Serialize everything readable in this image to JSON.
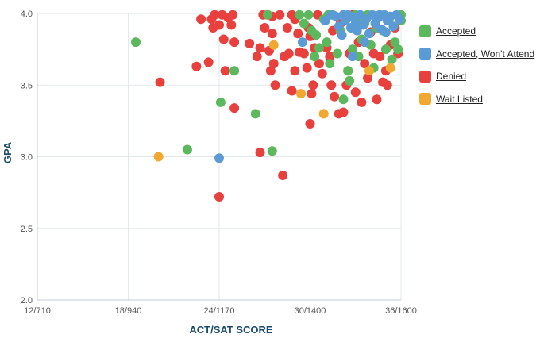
{
  "chart_data": {
    "type": "scatter",
    "xlabel": "ACT/SAT SCORE",
    "ylabel": "GPA",
    "x_axis": {
      "range": [
        12,
        36
      ],
      "ticks": [
        {
          "value": 12,
          "label": "12/710"
        },
        {
          "value": 18,
          "label": "18/940"
        },
        {
          "value": 24,
          "label": "24/1170"
        },
        {
          "value": 30,
          "label": "30/1400"
        },
        {
          "value": 36,
          "label": "36/1600"
        }
      ]
    },
    "y_axis": {
      "range": [
        2.0,
        4.0
      ],
      "ticks": [
        {
          "value": 2.0,
          "label": "2.0"
        },
        {
          "value": 2.5,
          "label": "2.5"
        },
        {
          "value": 3.0,
          "label": "3.0"
        },
        {
          "value": 3.5,
          "label": "3.5"
        },
        {
          "value": 4.0,
          "label": "4.0"
        }
      ]
    },
    "grid": true,
    "legend_position": "right",
    "series": [
      {
        "name": "Denied",
        "color": "#e8403c",
        "points": [
          [
            20.1,
            3.52
          ],
          [
            22.5,
            3.63
          ],
          [
            22.8,
            3.96
          ],
          [
            23.3,
            3.66
          ],
          [
            23.5,
            3.96
          ],
          [
            23.7,
            3.99
          ],
          [
            23.6,
            3.9
          ],
          [
            24.0,
            3.92
          ],
          [
            24.2,
            3.99
          ],
          [
            24.3,
            3.82
          ],
          [
            24.4,
            3.6
          ],
          [
            24.6,
            3.97
          ],
          [
            24.8,
            3.92
          ],
          [
            24.9,
            3.99
          ],
          [
            25.0,
            3.8
          ],
          [
            25.0,
            3.34
          ],
          [
            24.0,
            2.72
          ],
          [
            26.0,
            3.79
          ],
          [
            26.5,
            3.7
          ],
          [
            26.7,
            3.76
          ],
          [
            26.9,
            3.99
          ],
          [
            27.0,
            3.9
          ],
          [
            27.2,
            3.99
          ],
          [
            27.4,
            3.6
          ],
          [
            27.3,
            3.74
          ],
          [
            27.5,
            3.98
          ],
          [
            27.5,
            3.86
          ],
          [
            27.6,
            3.65
          ],
          [
            27.7,
            3.5
          ],
          [
            26.7,
            3.03
          ],
          [
            28.3,
            3.7
          ],
          [
            28.0,
            3.99
          ],
          [
            28.6,
            3.72
          ],
          [
            28.8,
            3.99
          ],
          [
            29.0,
            3.96
          ],
          [
            29.2,
            3.86
          ],
          [
            29.3,
            3.73
          ],
          [
            29.0,
            3.6
          ],
          [
            28.8,
            3.46
          ],
          [
            28.2,
            2.87
          ],
          [
            29.6,
            3.72
          ],
          [
            29.8,
            3.62
          ],
          [
            29.9,
            3.9
          ],
          [
            30.1,
            3.44
          ],
          [
            30.2,
            3.5
          ],
          [
            30.3,
            3.76
          ],
          [
            30.5,
            3.99
          ],
          [
            30.0,
            3.23
          ],
          [
            30.6,
            3.65
          ],
          [
            30.8,
            3.58
          ],
          [
            31.0,
            3.96
          ],
          [
            31.1,
            3.76
          ],
          [
            31.3,
            3.7
          ],
          [
            31.4,
            3.5
          ],
          [
            31.6,
            3.42
          ],
          [
            31.5,
            3.88
          ],
          [
            31.9,
            3.3
          ],
          [
            32.2,
            3.31
          ],
          [
            32.4,
            3.5
          ],
          [
            32.5,
            3.6
          ],
          [
            32.6,
            3.72
          ],
          [
            32.8,
            3.99
          ],
          [
            33.0,
            3.45
          ],
          [
            33.2,
            3.8
          ],
          [
            33.4,
            3.38
          ],
          [
            33.6,
            3.65
          ],
          [
            33.8,
            3.55
          ],
          [
            34.0,
            3.87
          ],
          [
            34.2,
            3.72
          ],
          [
            34.4,
            3.4
          ],
          [
            34.6,
            3.7
          ],
          [
            34.8,
            3.52
          ],
          [
            35.0,
            3.6
          ],
          [
            35.1,
            3.5
          ],
          [
            35.3,
            3.78
          ],
          [
            35.6,
            3.9
          ],
          [
            35.8,
            3.72
          ],
          [
            30.0,
            3.84
          ],
          [
            32.0,
            3.93
          ],
          [
            28.5,
            3.9
          ]
        ]
      },
      {
        "name": "Accepted",
        "color": "#5cb85c",
        "points": [
          [
            18.5,
            3.8
          ],
          [
            21.9,
            3.05
          ],
          [
            24.1,
            3.38
          ],
          [
            25.0,
            3.6
          ],
          [
            26.4,
            3.3
          ],
          [
            27.5,
            3.04
          ],
          [
            27.2,
            3.99
          ],
          [
            29.3,
            3.99
          ],
          [
            29.6,
            3.93
          ],
          [
            29.9,
            3.99
          ],
          [
            30.1,
            3.88
          ],
          [
            30.3,
            3.7
          ],
          [
            30.4,
            3.85
          ],
          [
            30.6,
            3.76
          ],
          [
            30.9,
            3.96
          ],
          [
            31.1,
            3.8
          ],
          [
            31.3,
            3.65
          ],
          [
            31.5,
            3.99
          ],
          [
            31.8,
            3.72
          ],
          [
            32.0,
            3.88
          ],
          [
            32.2,
            3.4
          ],
          [
            32.5,
            3.6
          ],
          [
            32.6,
            3.53
          ],
          [
            32.8,
            3.75
          ],
          [
            33.0,
            3.99
          ],
          [
            33.2,
            3.7
          ],
          [
            33.4,
            3.82
          ],
          [
            33.6,
            3.93
          ],
          [
            33.8,
            3.99
          ],
          [
            34.0,
            3.78
          ],
          [
            34.2,
            3.62
          ],
          [
            34.4,
            3.9
          ],
          [
            34.6,
            3.99
          ],
          [
            34.8,
            3.88
          ],
          [
            35.0,
            3.75
          ],
          [
            35.2,
            3.96
          ],
          [
            35.4,
            3.68
          ],
          [
            35.6,
            3.8
          ],
          [
            35.8,
            3.75
          ],
          [
            36.0,
            3.99
          ],
          [
            36.0,
            3.95
          ],
          [
            31.2,
            3.99
          ],
          [
            32.4,
            3.96
          ],
          [
            33.1,
            3.97
          ]
        ]
      },
      {
        "name": "Accepted, Won't Attend",
        "color": "#5b9bd5",
        "points": [
          [
            24.0,
            2.99
          ],
          [
            29.5,
            3.8
          ],
          [
            31.0,
            3.95
          ],
          [
            31.4,
            3.99
          ],
          [
            31.7,
            3.98
          ],
          [
            31.9,
            3.91
          ],
          [
            32.1,
            3.85
          ],
          [
            32.3,
            3.95
          ],
          [
            32.5,
            3.99
          ],
          [
            32.7,
            3.9
          ],
          [
            32.9,
            3.97
          ],
          [
            33.1,
            3.88
          ],
          [
            33.3,
            3.99
          ],
          [
            33.5,
            3.92
          ],
          [
            33.7,
            3.96
          ],
          [
            33.9,
            3.86
          ],
          [
            34.1,
            3.99
          ],
          [
            34.3,
            3.93
          ],
          [
            34.5,
            3.97
          ],
          [
            34.7,
            3.89
          ],
          [
            34.9,
            3.99
          ],
          [
            35.1,
            3.95
          ],
          [
            35.3,
            3.98
          ],
          [
            35.5,
            3.91
          ],
          [
            35.7,
            3.99
          ],
          [
            35.9,
            3.96
          ],
          [
            32.8,
            3.7
          ],
          [
            33.6,
            3.8
          ],
          [
            32.2,
            3.99
          ],
          [
            34.6,
            3.99
          ],
          [
            33.0,
            3.93
          ],
          [
            35.0,
            3.87
          ]
        ]
      },
      {
        "name": "Wait Listed",
        "color": "#f0a830",
        "points": [
          [
            20.0,
            3.0
          ],
          [
            27.6,
            3.78
          ],
          [
            29.4,
            3.44
          ],
          [
            30.9,
            3.3
          ],
          [
            33.9,
            3.6
          ],
          [
            35.3,
            3.62
          ]
        ]
      }
    ]
  }
}
